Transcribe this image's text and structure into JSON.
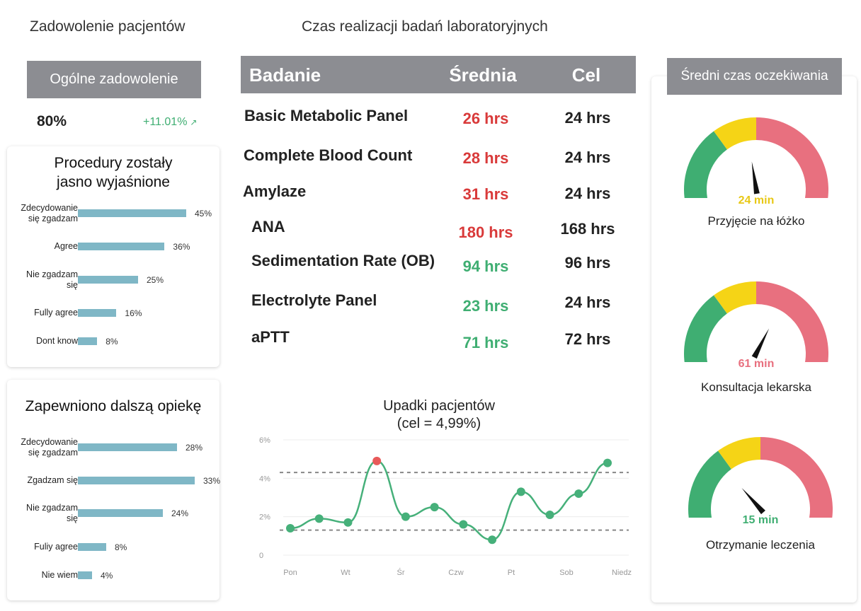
{
  "colors": {
    "header_gray": "#8c8d92",
    "bar_blue": "#7fb7c6",
    "red": "#d93a3a",
    "green": "#3fae72",
    "gauge_green": "#3fae72",
    "gauge_yellow": "#f5d416",
    "gauge_red": "#e8707f",
    "line_green": "#46b07a",
    "point_red": "#e85a5a"
  },
  "satisfaction": {
    "title": "Zadowolenie pacjentów",
    "header": "Ogólne zadowolenie",
    "value": "80%",
    "change": "+11.01%",
    "change_icon": "trend-up-icon"
  },
  "procedures_chart": {
    "title_line1": "Procedury zostały",
    "title_line2": "jasno wyjaśnione",
    "categories": [
      {
        "line1": "Zdecydowanie",
        "line2": "się zgadzam"
      },
      {
        "line1": "Agree",
        "line2": ""
      },
      {
        "line1": "Nie zgadzam",
        "line2": "się"
      },
      {
        "line1": "Fully agree",
        "line2": ""
      },
      {
        "line1": "Dont know",
        "line2": ""
      }
    ],
    "values": [
      45,
      36,
      25,
      16,
      8
    ],
    "value_labels": [
      "45%",
      "36%",
      "25%",
      "16%",
      "8%"
    ]
  },
  "followup_chart": {
    "title": "Zapewniono dalszą opiekę",
    "categories": [
      {
        "line1": "Zdecydowanie",
        "line2": "się zgadzam"
      },
      {
        "line1": "Zgadzam się",
        "line2": ""
      },
      {
        "line1": "Nie zgadzam",
        "line2": "się"
      },
      {
        "line1": "Fuliy agree",
        "line2": ""
      },
      {
        "line1": "Nie wiem",
        "line2": ""
      }
    ],
    "values": [
      28,
      33,
      24,
      8,
      4
    ],
    "value_labels": [
      "28%",
      "33%",
      "24%",
      "8%",
      "4%"
    ]
  },
  "lab": {
    "title": "Czas realizacji badań laboratoryjnych",
    "col_test": "Badanie",
    "col_avg": "Średnia",
    "col_target": "Cel",
    "rows": [
      {
        "name": "Basic Metabolic Panel",
        "avg": "26 hrs",
        "target": "24 hrs",
        "status": "red"
      },
      {
        "name": "Complete Blood Count",
        "avg": "28 hrs",
        "target": "24 hrs",
        "status": "red"
      },
      {
        "name": "Amylaze",
        "avg": "31 hrs",
        "target": "24 hrs",
        "status": "red"
      },
      {
        "name": "ANA",
        "avg": "180 hrs",
        "target": "168 hrs",
        "status": "red"
      },
      {
        "name": "Sedimentation Rate (OB)",
        "avg": "94 hrs",
        "target": "96 hrs",
        "status": "green"
      },
      {
        "name": "Electrolyte Panel",
        "avg": "23 hrs",
        "target": "24 hrs",
        "status": "green"
      },
      {
        "name": "aPTT",
        "avg": "71 hrs",
        "target": "72 hrs",
        "status": "green"
      }
    ]
  },
  "falls": {
    "title_line1": "Upadki pacjentów",
    "title_line2": "(cel = 4,99%)"
  },
  "chart_data": {
    "type": "line",
    "x_ticks": [
      "Pon",
      "Wt",
      "Śr",
      "Czw",
      "Pt",
      "Sob",
      "Niedz"
    ],
    "y_ticks": [
      "0",
      "2%",
      "4%",
      "6%"
    ],
    "ylim": [
      0,
      6
    ],
    "values": [
      1.4,
      1.9,
      1.7,
      4.9,
      2.0,
      2.5,
      1.6,
      0.8,
      3.3,
      2.1,
      3.2,
      4.8
    ],
    "highlight_index": 3,
    "reference_lines": [
      4.3,
      1.3
    ]
  },
  "wait": {
    "header": "Średni czas oczekiwania",
    "gauges": [
      {
        "value": "24 min",
        "label": "Przyjęcie na łóżko",
        "level": 0.45,
        "value_color": "#e8c816"
      },
      {
        "value": "61 min",
        "label": "Konsultacja lekarska",
        "level": 0.65,
        "value_color": "#e8707f"
      },
      {
        "value": "15 min",
        "label": "Otrzymanie leczenia",
        "level": 0.27,
        "value_color": "#3fae72"
      }
    ]
  }
}
